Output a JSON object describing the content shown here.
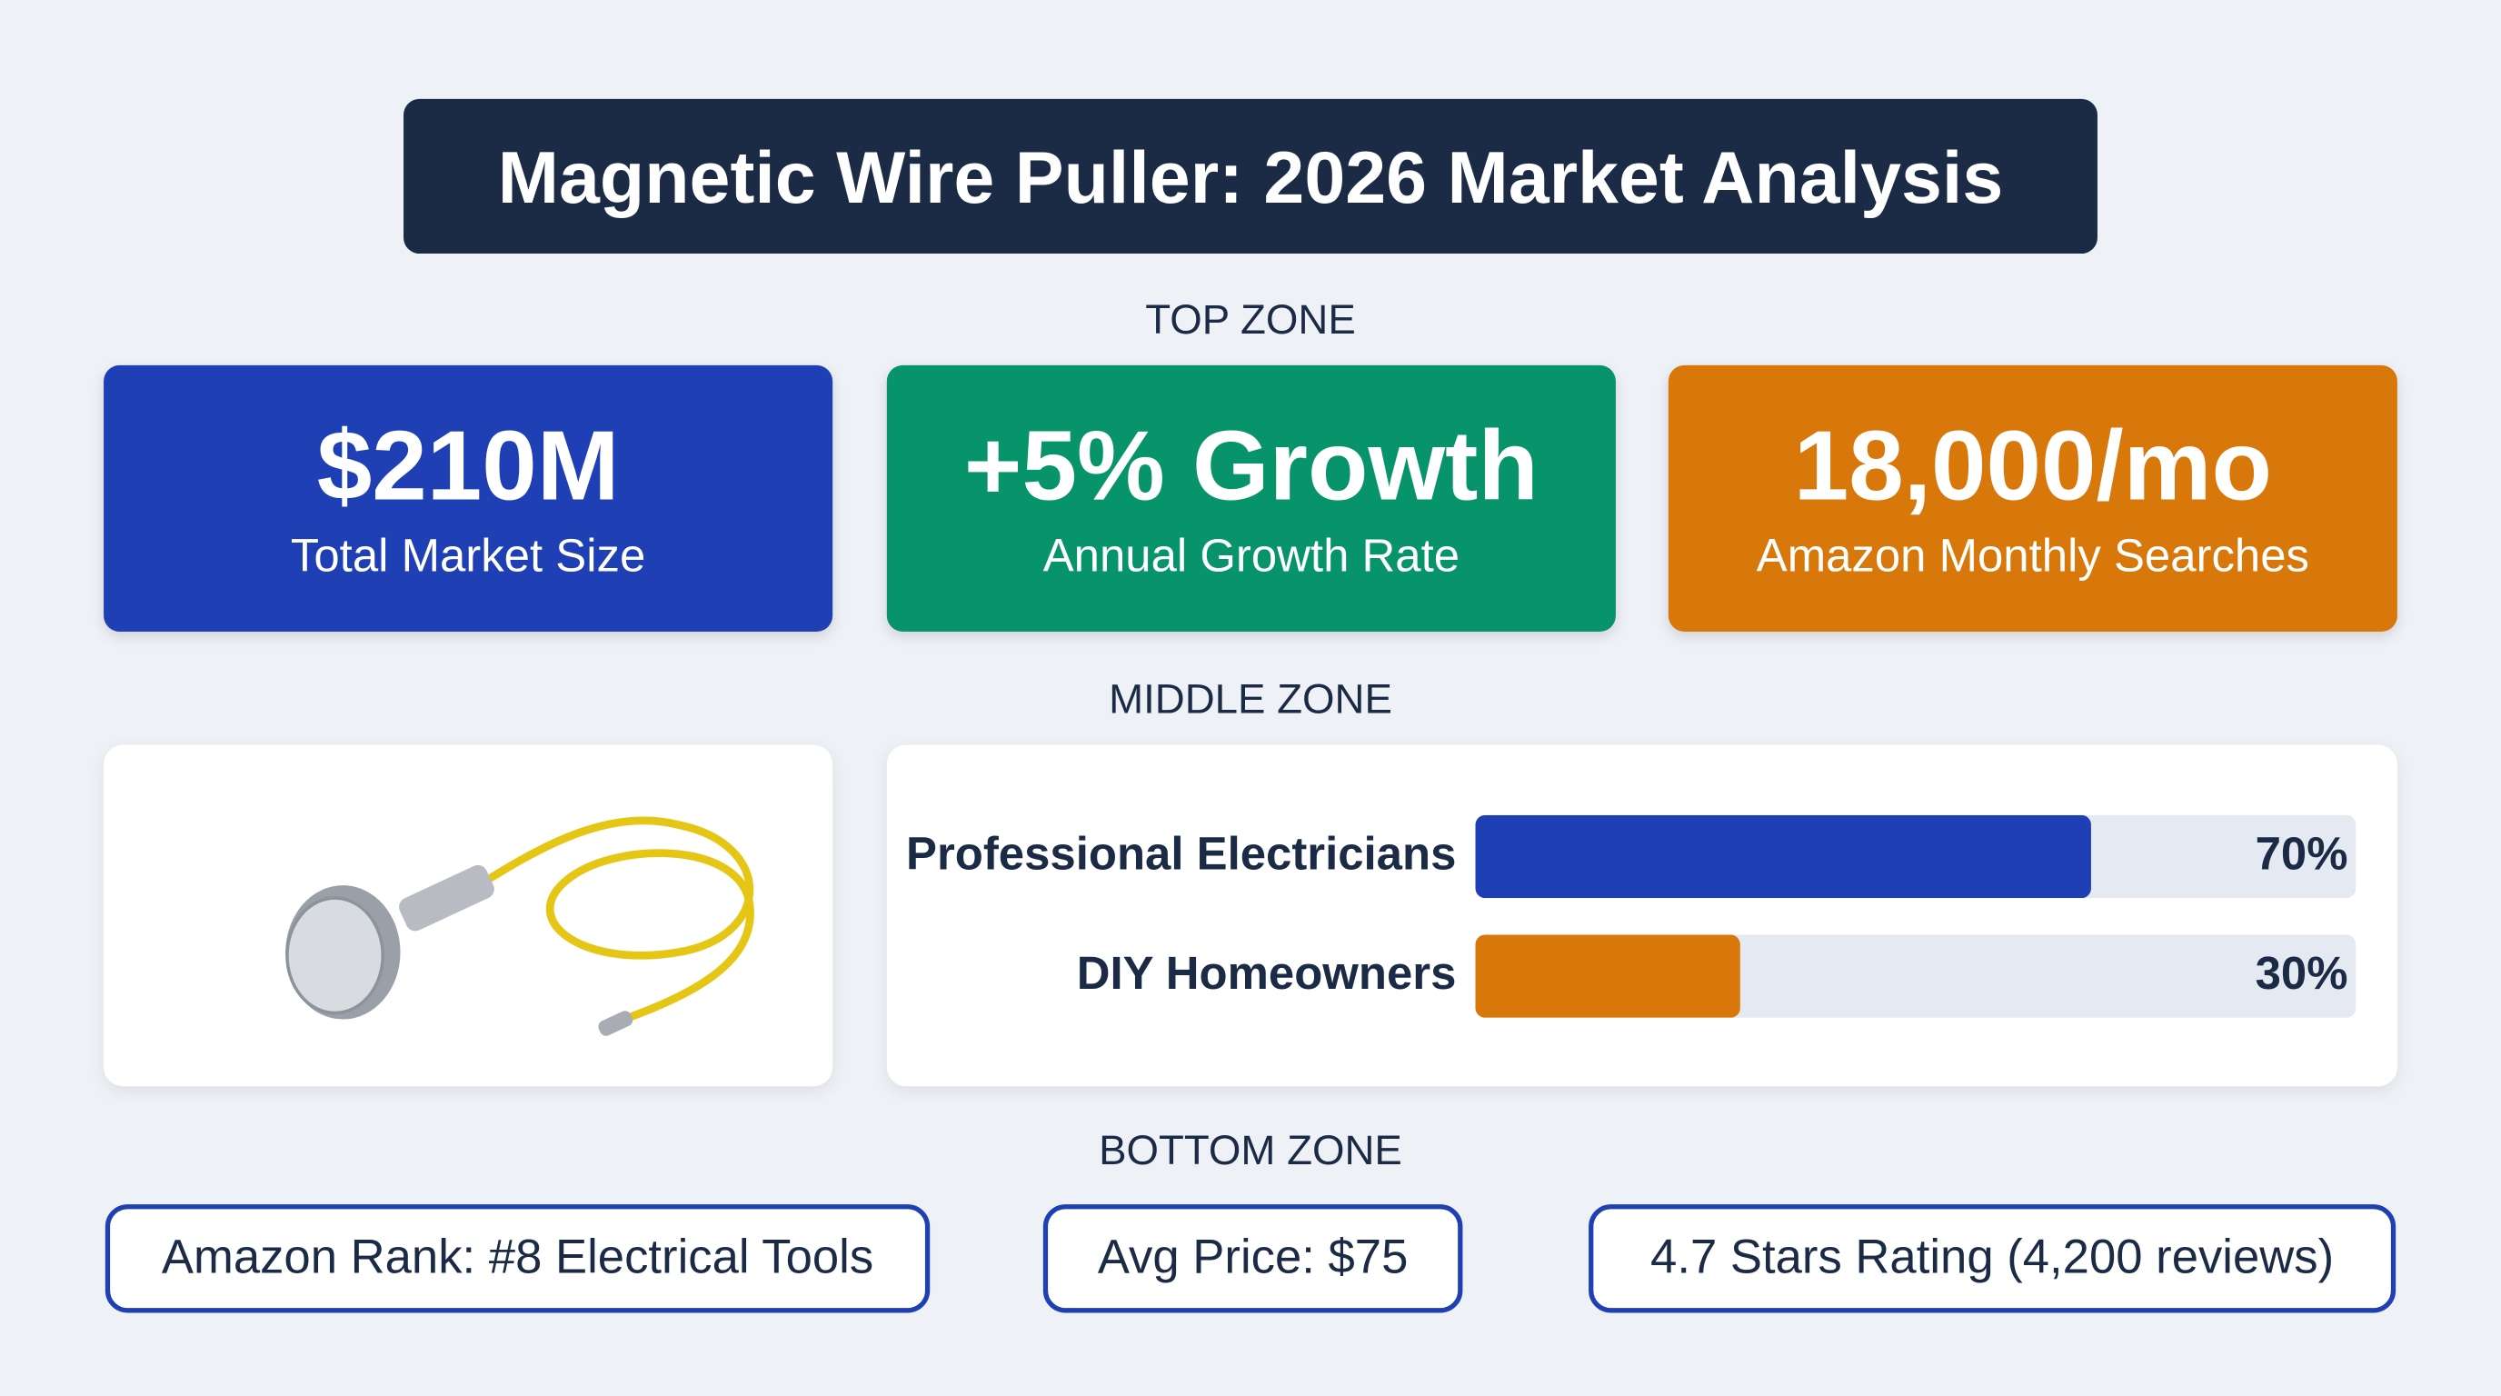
{
  "header": {
    "title": "Magnetic Wire Puller: 2026 Market Analysis"
  },
  "top_zone": {
    "label": "TOP ZONE",
    "cards": [
      {
        "value": "$210M",
        "caption": "Total Market Size",
        "color": "#1f3fb5"
      },
      {
        "value": "+5% Growth",
        "caption": "Annual Growth Rate",
        "color": "#07946a"
      },
      {
        "value": "18,000/mo",
        "caption": "Amazon Monthly Searches",
        "color": "#d9780a"
      }
    ]
  },
  "middle_zone": {
    "label": "MIDDLE ZONE",
    "audience": {
      "categories": [
        "Professional Electricians",
        "DIY Homeowners"
      ],
      "values": [
        70,
        30
      ],
      "value_labels": [
        "70%",
        "30%"
      ],
      "colors": [
        "#1f3fb5",
        "#d9780a"
      ],
      "xlim": [
        0,
        100
      ]
    }
  },
  "bottom_zone": {
    "label": "BOTTOM ZONE",
    "pills": [
      "Amazon Rank: #8 Electrical Tools",
      "Avg Price: $75",
      "4.7 Stars Rating (4,200 reviews)"
    ]
  }
}
